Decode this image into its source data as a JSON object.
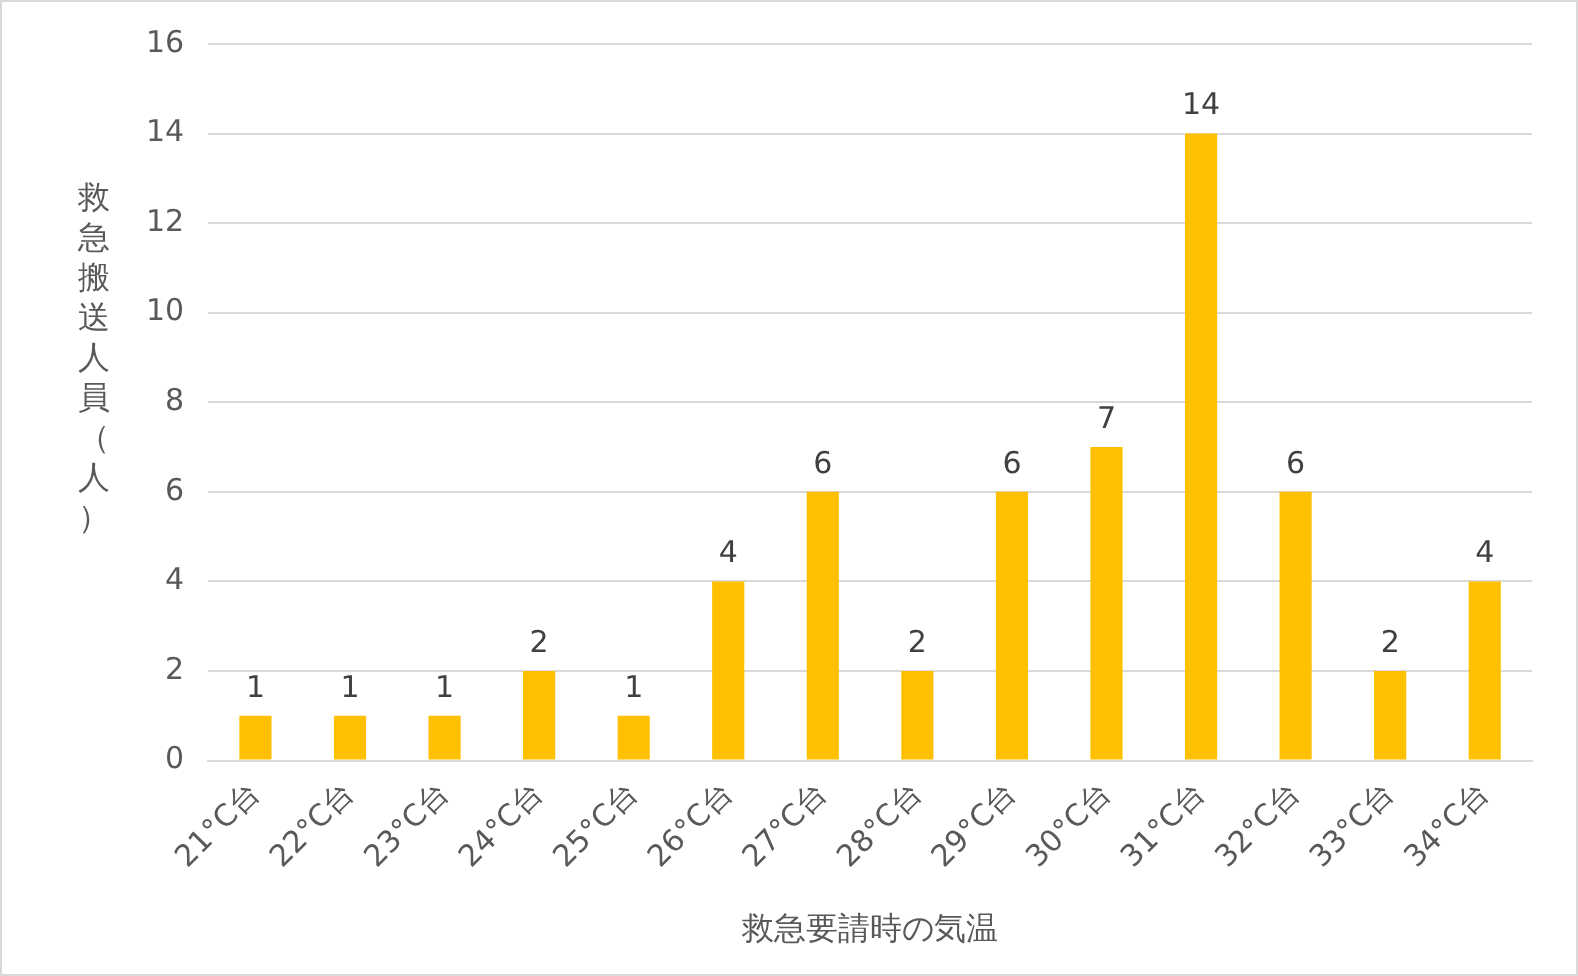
{
  "chart_data": {
    "type": "bar",
    "xlabel": "救急要請時の気温",
    "ylabel": "救急搬送人員（人）",
    "categories": [
      "21°C台",
      "22°C台",
      "23°C台",
      "24°C台",
      "25°C台",
      "26°C台",
      "27°C台",
      "28°C台",
      "29°C台",
      "30°C台",
      "31°C台",
      "32°C台",
      "33°C台",
      "34°C台"
    ],
    "values": [
      1,
      1,
      1,
      2,
      1,
      4,
      6,
      2,
      6,
      7,
      14,
      6,
      2,
      4
    ],
    "color": "#ffc000",
    "ylim": [
      0,
      16
    ],
    "yticks": [
      0,
      2,
      4,
      6,
      8,
      10,
      12,
      14,
      16
    ],
    "grid": "y",
    "data_labels": true,
    "legend": false
  }
}
